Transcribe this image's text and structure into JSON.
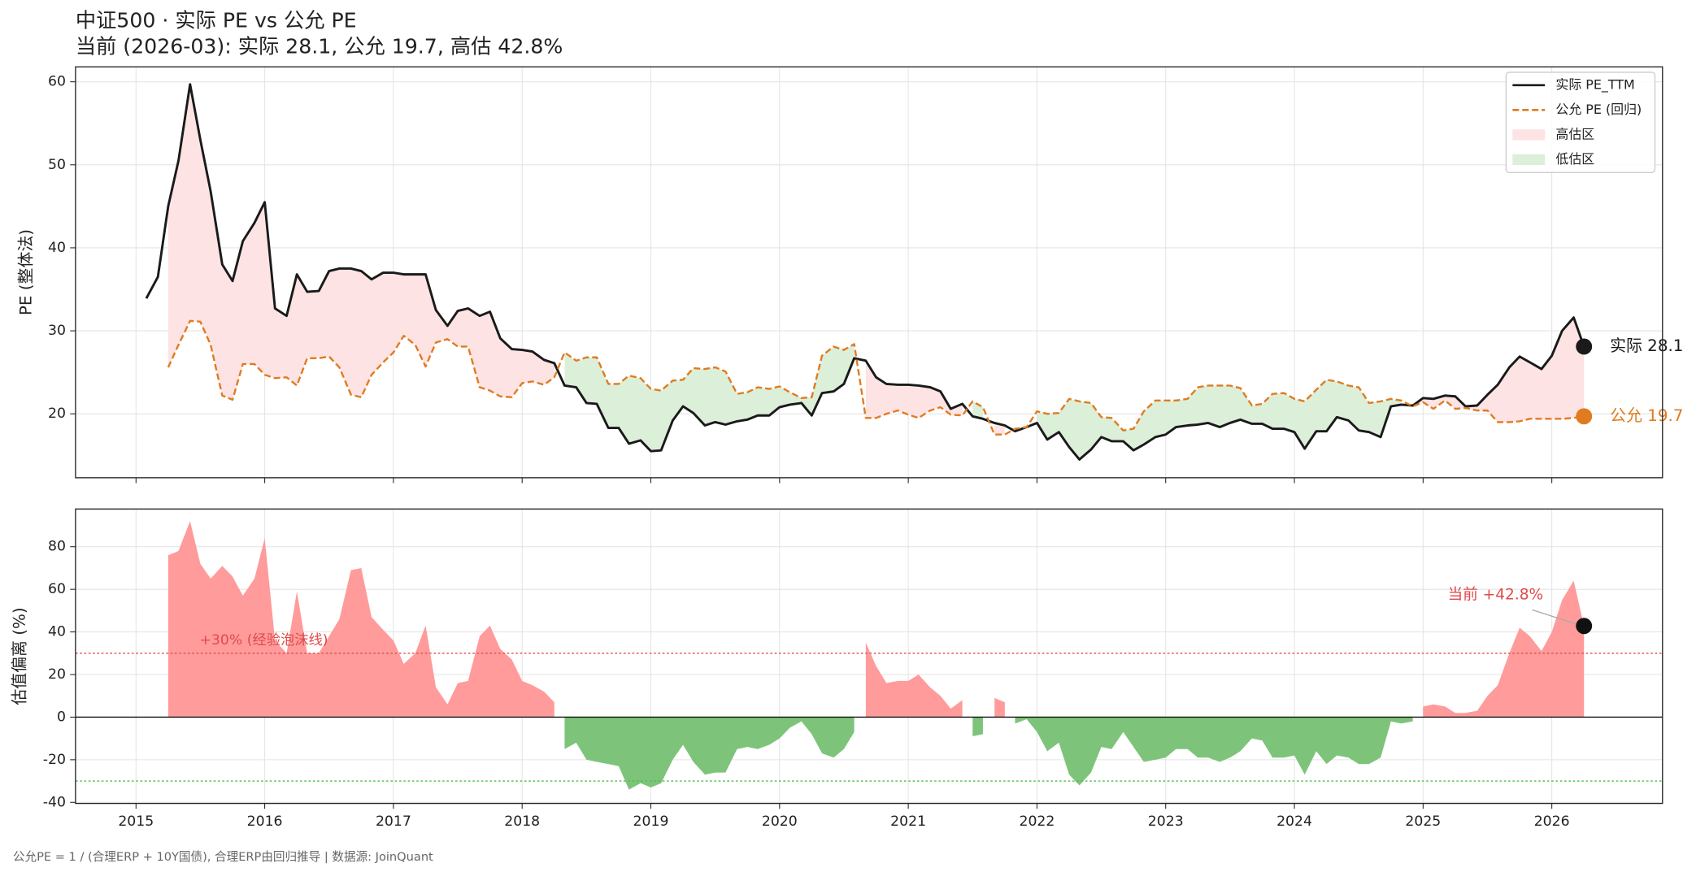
{
  "title": "中证500 · 实际 PE vs 公允 PE",
  "subtitle": "当前 (2026-03): 实际 28.1, 公允 19.7, 高估 42.8%",
  "footer": "公允PE = 1 / (合理ERP + 10Y国债), 合理ERP由回归推导  |  数据源: JoinQuant",
  "chart_data": [
    {
      "type": "line",
      "y_label": "PE (整体法)",
      "x": [
        2015.08,
        2015.17,
        2015.25,
        2015.33,
        2015.42,
        2015.5,
        2015.58,
        2015.67,
        2015.75,
        2015.83,
        2015.92,
        2016,
        2016.08,
        2016.17,
        2016.25,
        2016.33,
        2016.42,
        2016.5,
        2016.58,
        2016.67,
        2016.75,
        2016.83,
        2016.92,
        2017,
        2017.08,
        2017.17,
        2017.25,
        2017.33,
        2017.42,
        2017.5,
        2017.58,
        2017.67,
        2017.75,
        2017.83,
        2017.92,
        2018,
        2018.08,
        2018.17,
        2018.25,
        2018.33,
        2018.42,
        2018.5,
        2018.58,
        2018.67,
        2018.75,
        2018.83,
        2018.92,
        2019,
        2019.08,
        2019.17,
        2019.25,
        2019.33,
        2019.42,
        2019.5,
        2019.58,
        2019.67,
        2019.75,
        2019.83,
        2019.92,
        2020,
        2020.08,
        2020.17,
        2020.25,
        2020.33,
        2020.42,
        2020.5,
        2020.58,
        2020.67,
        2020.75,
        2020.83,
        2020.92,
        2021,
        2021.08,
        2021.17,
        2021.25,
        2021.33,
        2021.42,
        2021.5,
        2021.58,
        2021.67,
        2021.75,
        2021.83,
        2021.92,
        2022,
        2022.08,
        2022.17,
        2022.25,
        2022.33,
        2022.42,
        2022.5,
        2022.58,
        2022.67,
        2022.75,
        2022.83,
        2022.92,
        2023,
        2023.08,
        2023.17,
        2023.25,
        2023.33,
        2023.42,
        2023.5,
        2023.58,
        2023.67,
        2023.75,
        2023.83,
        2023.92,
        2024,
        2024.08,
        2024.17,
        2024.25,
        2024.33,
        2024.42,
        2024.5,
        2024.58,
        2024.67,
        2024.75,
        2024.83,
        2024.92,
        2025,
        2025.08,
        2025.17,
        2025.25,
        2025.33,
        2025.42,
        2025.5,
        2025.58,
        2025.67,
        2025.75,
        2025.83,
        2025.92,
        2026,
        2026.08,
        2026.17,
        2026.25
      ],
      "series": [
        {
          "name": "实际 PE_TTM",
          "color": "#1a1a1a",
          "dashed": false,
          "end_label": "实际 28.1",
          "values": [
            33.9,
            36.5,
            45,
            50.5,
            59.7,
            53,
            46.8,
            38,
            36,
            40.8,
            43,
            45.5,
            32.7,
            31.8,
            36.8,
            34.7,
            34.8,
            37.2,
            37.5,
            37.5,
            37.2,
            36.2,
            37,
            37,
            36.8,
            36.8,
            36.8,
            32.5,
            30.6,
            32.4,
            32.7,
            31.8,
            32.3,
            29.1,
            27.8,
            27.7,
            27.5,
            26.5,
            26.1,
            23.4,
            23.2,
            21.3,
            21.2,
            18.3,
            18.3,
            16.4,
            16.8,
            15.5,
            15.6,
            19.2,
            20.9,
            20.1,
            18.6,
            19,
            18.7,
            19.1,
            19.3,
            19.8,
            19.8,
            20.8,
            21.1,
            21.3,
            19.8,
            22.5,
            22.7,
            23.6,
            26.7,
            26.4,
            24.4,
            23.6,
            23.5,
            23.5,
            23.4,
            23.2,
            22.7,
            20.6,
            21.2,
            19.7,
            19.4,
            18.9,
            18.6,
            17.9,
            18.4,
            18.9,
            16.9,
            17.8,
            16,
            14.5,
            15.7,
            17.2,
            16.7,
            16.7,
            15.6,
            16.3,
            17.2,
            17.5,
            18.4,
            18.6,
            18.7,
            18.9,
            18.4,
            18.9,
            19.3,
            18.8,
            18.8,
            18.2,
            18.2,
            17.8,
            15.8,
            17.9,
            17.9,
            19.6,
            19.2,
            18,
            17.8,
            17.2,
            20.9,
            21.1,
            21,
            21.9,
            21.8,
            22.2,
            22.1,
            20.9,
            21,
            22.3,
            23.5,
            25.6,
            26.9,
            26.2,
            25.4,
            27,
            30,
            31.6,
            28.1
          ]
        },
        {
          "name": "公允 PE (回归)",
          "color": "#e07b20",
          "dashed": true,
          "end_label": "公允 19.7",
          "values": [
            null,
            null,
            25.6,
            28.3,
            31.2,
            31.1,
            28.3,
            22.2,
            21.7,
            26,
            26,
            24.7,
            24.3,
            24.4,
            23.4,
            26.7,
            26.7,
            26.9,
            25.6,
            22.3,
            22,
            24.7,
            26.2,
            27.4,
            29.4,
            28.3,
            25.7,
            28.6,
            29,
            28.1,
            28.1,
            23.2,
            22.8,
            22.1,
            22,
            23.7,
            23.9,
            23.5,
            24.4,
            27.4,
            26.4,
            26.8,
            26.8,
            23.6,
            23.6,
            24.6,
            24.3,
            23,
            22.8,
            24,
            24.1,
            25.5,
            25.4,
            25.6,
            25.1,
            22.4,
            22.6,
            23.2,
            23,
            23.3,
            22.6,
            21.9,
            22,
            27,
            28.1,
            27.7,
            28.4,
            19.5,
            19.5,
            20,
            20.4,
            19.9,
            19.5,
            20.4,
            20.8,
            19.9,
            19.8,
            21.5,
            20.8,
            17.5,
            17.5,
            18.2,
            18.4,
            20.3,
            20,
            20.1,
            21.8,
            21.5,
            21.3,
            19.6,
            19.5,
            18,
            18.2,
            20.3,
            21.6,
            21.6,
            21.6,
            21.8,
            23.2,
            23.4,
            23.4,
            23.4,
            23.1,
            21,
            21.2,
            22.4,
            22.5,
            21.8,
            21.5,
            22.9,
            24.1,
            23.9,
            23.4,
            23.2,
            21.3,
            21.5,
            21.8,
            21.6,
            20.9,
            21.4,
            20.6,
            21.6,
            20.6,
            20.7,
            20.4,
            20.4,
            19,
            19,
            19.1,
            19.4,
            19.4,
            19.4,
            19.4,
            19.5,
            19.7
          ]
        }
      ],
      "regions": [
        {
          "name": "高估区",
          "color": "#fde3e3"
        },
        {
          "name": "低估区",
          "color": "#dcefd9"
        }
      ],
      "xlim": [
        2014.53,
        2026.86
      ],
      "xticks": [
        2015,
        2016,
        2017,
        2018,
        2019,
        2020,
        2021,
        2022,
        2023,
        2024,
        2025,
        2026
      ],
      "ylim": [
        12.3,
        61.8
      ],
      "yticks": [
        20,
        30,
        40,
        50,
        60
      ],
      "grid": true,
      "legend": "upper right"
    },
    {
      "type": "area",
      "y_label": "估值偏离 (%)",
      "x": [
        2015.08,
        2015.17,
        2015.25,
        2015.33,
        2015.42,
        2015.5,
        2015.58,
        2015.67,
        2015.75,
        2015.83,
        2015.92,
        2016,
        2016.08,
        2016.17,
        2016.25,
        2016.33,
        2016.42,
        2016.5,
        2016.58,
        2016.67,
        2016.75,
        2016.83,
        2016.92,
        2017,
        2017.08,
        2017.17,
        2017.25,
        2017.33,
        2017.42,
        2017.5,
        2017.58,
        2017.67,
        2017.75,
        2017.83,
        2017.92,
        2018,
        2018.08,
        2018.17,
        2018.25,
        2018.33,
        2018.42,
        2018.5,
        2018.58,
        2018.67,
        2018.75,
        2018.83,
        2018.92,
        2019,
        2019.08,
        2019.17,
        2019.25,
        2019.33,
        2019.42,
        2019.5,
        2019.58,
        2019.67,
        2019.75,
        2019.83,
        2019.92,
        2020,
        2020.08,
        2020.17,
        2020.25,
        2020.33,
        2020.42,
        2020.5,
        2020.58,
        2020.67,
        2020.75,
        2020.83,
        2020.92,
        2021,
        2021.08,
        2021.17,
        2021.25,
        2021.33,
        2021.42,
        2021.5,
        2021.58,
        2021.67,
        2021.75,
        2021.83,
        2021.92,
        2022,
        2022.08,
        2022.17,
        2022.25,
        2022.33,
        2022.42,
        2022.5,
        2022.58,
        2022.67,
        2022.75,
        2022.83,
        2022.92,
        2023,
        2023.08,
        2023.17,
        2023.25,
        2023.33,
        2023.42,
        2023.5,
        2023.58,
        2023.67,
        2023.75,
        2023.83,
        2023.92,
        2024,
        2024.08,
        2024.17,
        2024.25,
        2024.33,
        2024.42,
        2024.5,
        2024.58,
        2024.67,
        2024.75,
        2024.83,
        2024.92,
        2025,
        2025.08,
        2025.17,
        2025.25,
        2025.33,
        2025.42,
        2025.5,
        2025.58,
        2025.67,
        2025.75,
        2025.83,
        2025.92,
        2026,
        2026.08,
        2026.17,
        2026.25
      ],
      "values": [
        null,
        null,
        76,
        78,
        92,
        72,
        65,
        71,
        66,
        57,
        65,
        84,
        36,
        30,
        59,
        30,
        30,
        38,
        46,
        69,
        70,
        47,
        41,
        36,
        25,
        30,
        43,
        14,
        6,
        16,
        17,
        38,
        43,
        32,
        27,
        17,
        15,
        12,
        7,
        -15,
        -12,
        -20,
        -21,
        -22,
        -23,
        -34,
        -31,
        -33,
        -31,
        -20,
        -13,
        -21,
        -27,
        -26,
        -26,
        -15,
        -14,
        -15,
        -13,
        -10,
        -5,
        -2,
        -8,
        -17,
        -19,
        -15,
        -7,
        35,
        24,
        16,
        17,
        17,
        20,
        14,
        10,
        4,
        8,
        -9,
        -8,
        9,
        7,
        -3,
        -1,
        -7,
        -16,
        -12,
        -27,
        -32,
        -26,
        -14,
        -15,
        -7,
        -14,
        -21,
        -20,
        -19,
        -15,
        -15,
        -19,
        -19,
        -21,
        -19,
        -16,
        -10,
        -11,
        -19,
        -19,
        -18,
        -27,
        -16,
        -22,
        -18,
        -19,
        -22,
        -22,
        -19,
        -2,
        -3,
        -2,
        5,
        6,
        5,
        2,
        2,
        3,
        10,
        15,
        30,
        42,
        38,
        31,
        40,
        55,
        64,
        42.8
      ],
      "positive_color": "#ff9b9b",
      "negative_color": "#7dc47a",
      "reference_lines": [
        {
          "value": 30,
          "label": "+30% (经验泡沫线)",
          "color": "#e04a4a"
        },
        {
          "value": -30,
          "color": "#4cbf4c"
        }
      ],
      "annotation": "当前 +42.8%",
      "xlim": [
        2014.53,
        2026.86
      ],
      "xticks": [
        2015,
        2016,
        2017,
        2018,
        2019,
        2020,
        2021,
        2022,
        2023,
        2024,
        2025,
        2026
      ],
      "ylim": [
        -40.5,
        97.7
      ],
      "yticks": [
        -40,
        -20,
        0,
        20,
        40,
        60,
        80
      ],
      "grid": true
    }
  ]
}
